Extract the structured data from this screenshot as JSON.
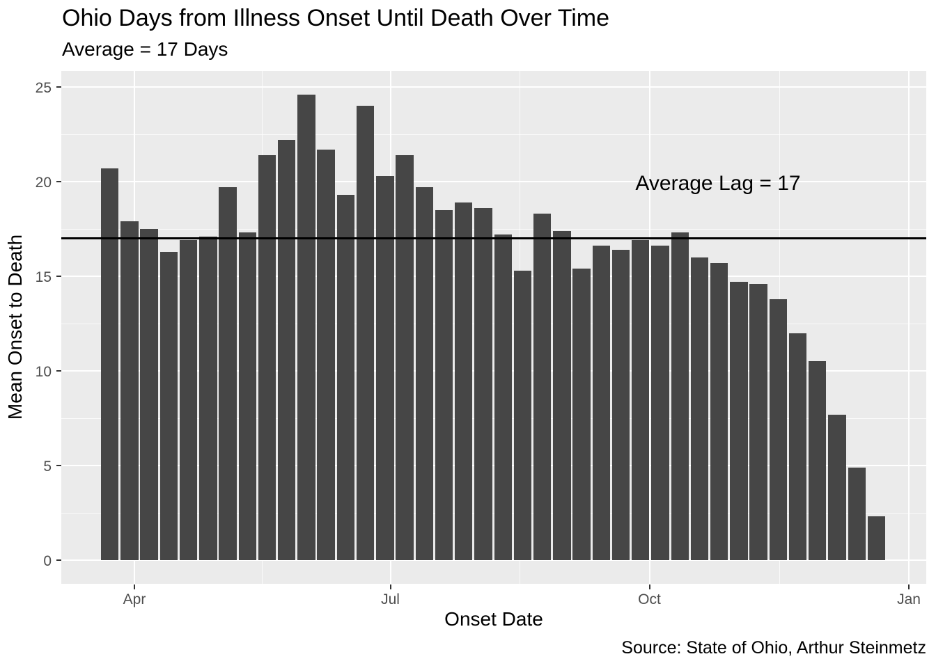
{
  "header": {
    "title": "Ohio Days from Illness Onset Until Death Over Time",
    "subtitle": "Average = 17 Days"
  },
  "caption": "Source: State of Ohio, Arthur Steinmetz",
  "chart_data": {
    "type": "bar",
    "title": "Ohio Days from Illness Onset Until Death Over Time",
    "subtitle": "Average = 17 Days",
    "xlabel": "Onset Date",
    "ylabel": "Mean Onset to Death",
    "annotation": "Average Lag = 17",
    "reference_line_y": 17,
    "x_tick_labels": [
      "Apr",
      "Jul",
      "Oct",
      "Jan"
    ],
    "y_tick_labels": [
      "0",
      "5",
      "10",
      "15",
      "20",
      "25"
    ],
    "y_ticks": [
      0,
      5,
      10,
      15,
      20,
      25
    ],
    "y_minor_ticks": [
      2.5,
      7.5,
      12.5,
      17.5,
      22.5
    ],
    "ylim": [
      -1.2,
      25.9
    ],
    "grid": "white major and minor gridlines on grey panel, legend none",
    "categories": [
      "Mar 22",
      "Mar 29",
      "Apr 5",
      "Apr 12",
      "Apr 19",
      "Apr 26",
      "May 3",
      "May 10",
      "May 17",
      "May 24",
      "May 31",
      "Jun 7",
      "Jun 14",
      "Jun 21",
      "Jun 28",
      "Jul 5",
      "Jul 12",
      "Jul 19",
      "Jul 26",
      "Aug 2",
      "Aug 9",
      "Aug 16",
      "Aug 23",
      "Aug 30",
      "Sep 6",
      "Sep 13",
      "Sep 20",
      "Sep 27",
      "Oct 4",
      "Oct 11",
      "Oct 18",
      "Oct 25",
      "Nov 1",
      "Nov 8",
      "Nov 15",
      "Nov 22",
      "Nov 29",
      "Dec 6",
      "Dec 13",
      "Dec 20"
    ],
    "values": [
      20.7,
      17.9,
      17.5,
      16.3,
      16.9,
      17.1,
      19.7,
      17.3,
      21.4,
      22.2,
      24.6,
      21.7,
      19.3,
      24.0,
      20.3,
      21.4,
      19.7,
      18.5,
      18.9,
      18.6,
      17.2,
      15.3,
      18.3,
      17.4,
      15.4,
      16.6,
      16.4,
      16.9,
      16.6,
      17.3,
      16.0,
      15.7,
      14.7,
      14.6,
      13.8,
      12.0,
      10.5,
      7.7,
      4.9,
      2.3
    ],
    "colors": {
      "bar": "#464646",
      "panel_background": "#EBEBEB",
      "gridline": "#FFFFFF",
      "tick_text": "#4D4D4D",
      "text": "#000000",
      "reference_line": "#000000"
    }
  }
}
